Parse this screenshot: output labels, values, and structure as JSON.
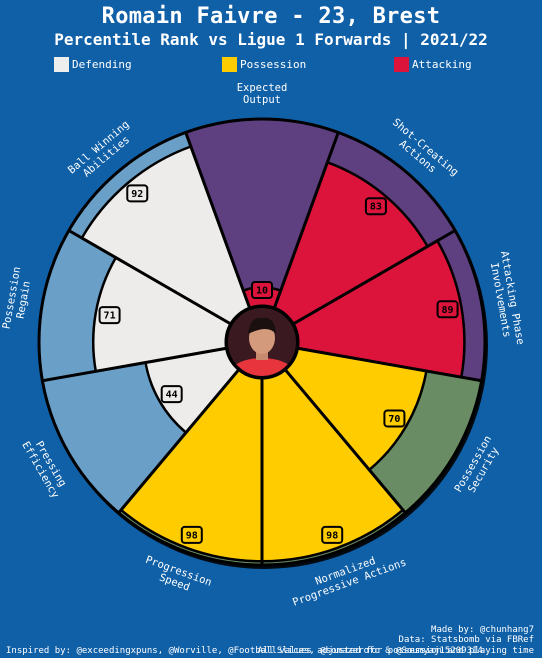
{
  "header": {
    "title": "Romain Faivre - 23, Brest",
    "subtitle": "Percentile Rank vs Ligue 1 Forwards | 2021/22"
  },
  "legend": [
    {
      "label": "Defending",
      "color": "#eeeeee"
    },
    {
      "label": "Possession",
      "color": "#ffcc00"
    },
    {
      "label": "Attacking",
      "color": "#dc143c"
    }
  ],
  "colors": {
    "background": "#1060a8",
    "defending_bg": "#6a9fc8",
    "possession_bg": "#6a8c64",
    "attacking_bg": "#5e3f80",
    "photo_icon": "player-photo-icon"
  },
  "chart_data": {
    "type": "pie",
    "subtype": "pizza-percentile",
    "range": [
      0,
      100
    ],
    "categories": [
      "Expected Output",
      "Shot-Creating Actions",
      "Attacking Phase Involvements",
      "Possession Security",
      "Normalized Progressive Actions",
      "Progression Speed",
      "Pressing Efficiency",
      "Possession Regain",
      "Ball Winning Abilities"
    ],
    "values": [
      10,
      83,
      89,
      70,
      98,
      98,
      44,
      71,
      92
    ],
    "groups": [
      "Attacking",
      "Attacking",
      "Attacking",
      "Possession",
      "Possession",
      "Possession",
      "Defending",
      "Defending",
      "Defending"
    ],
    "label_lines": [
      [
        "Expected",
        "Output"
      ],
      [
        "Shot-Creating",
        "Actions"
      ],
      [
        "Attacking Phase",
        "Involvements"
      ],
      [
        "Possession",
        "Security"
      ],
      [
        "Normalized",
        "Progressive Actions"
      ],
      [
        "Progression",
        "Speed"
      ],
      [
        "Pressing",
        "Efficiency"
      ],
      [
        "Possession",
        "Regain"
      ],
      [
        "Ball Winning",
        "Abilities"
      ]
    ]
  },
  "footer": {
    "made_by": "Made by: @chunhang7",
    "data_source": "Data: Statsbomb via FBRef",
    "note": "All values adjusted for possession and playing time",
    "inspired_by": "Inspired by: @exceedingxpuns, @Worville, @FootballSlices, @somazerofc & @Soumyaj15209314"
  }
}
